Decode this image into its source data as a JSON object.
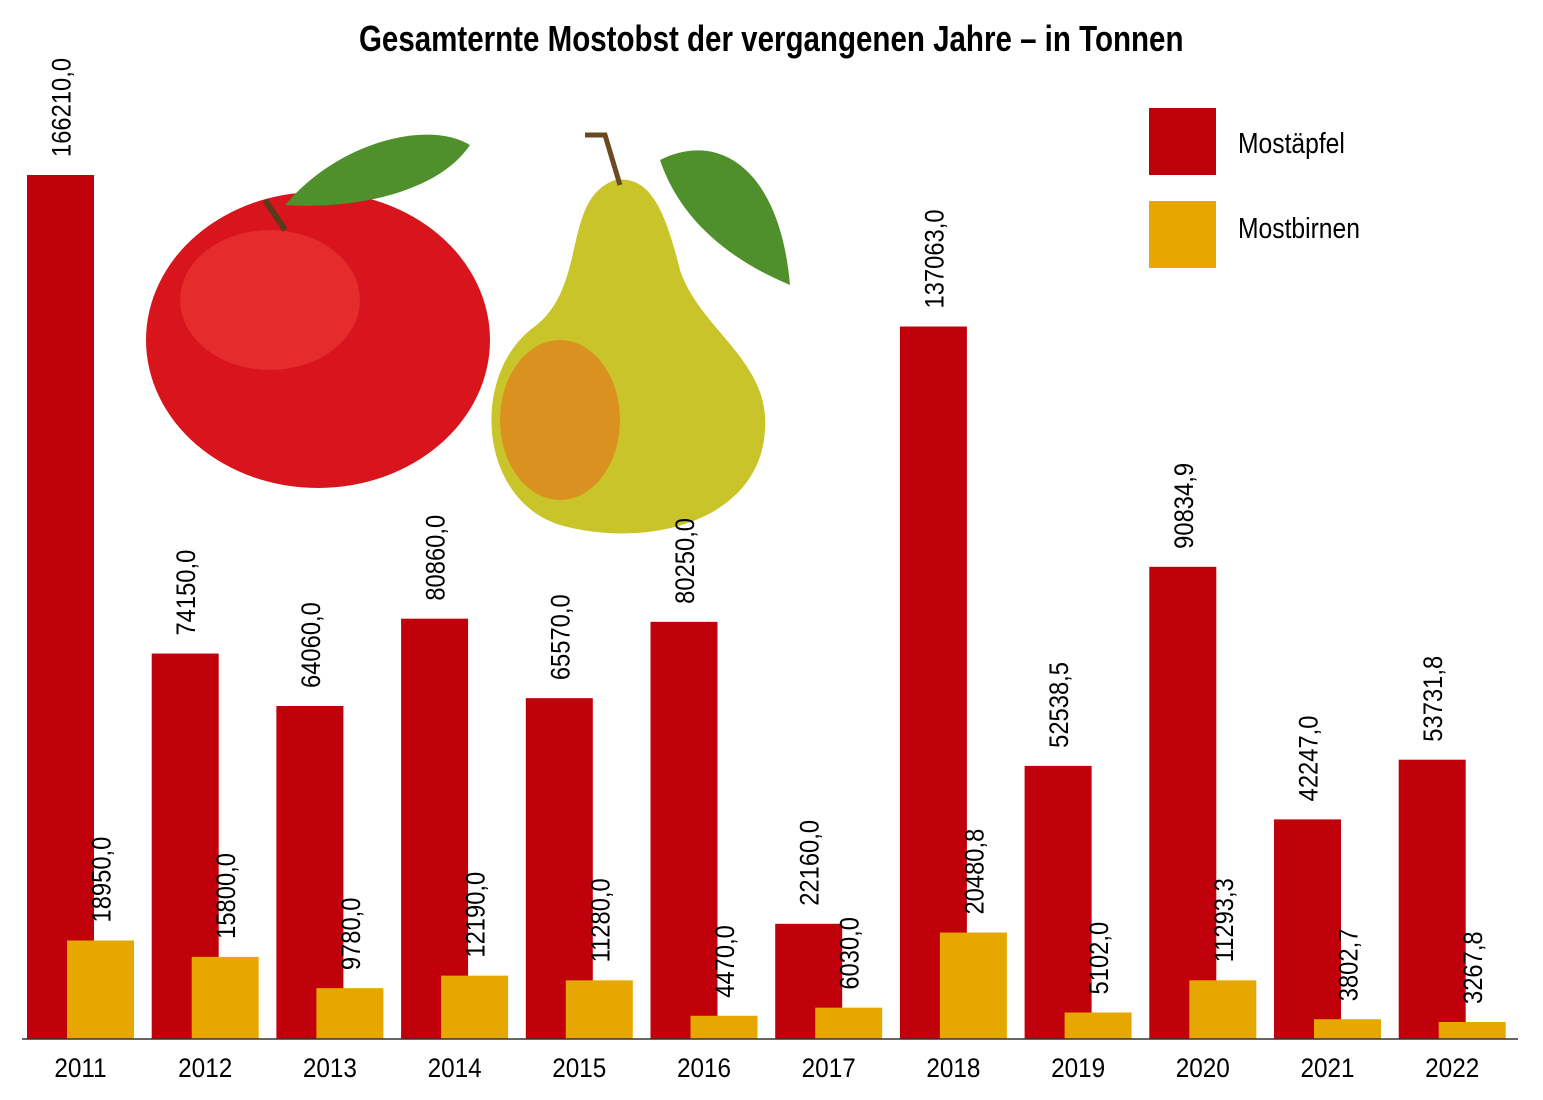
{
  "chart_data": {
    "type": "bar",
    "title": "Gesamternte Mostobst der vergangenen Jahre – in Tonnen",
    "xlabel": "",
    "ylabel": "",
    "ylim": [
      0,
      166210
    ],
    "grid": false,
    "legend_position": "top-right",
    "categories": [
      "2011",
      "2012",
      "2013",
      "2014",
      "2015",
      "2016",
      "2017",
      "2018",
      "2019",
      "2020",
      "2021",
      "2022"
    ],
    "series": [
      {
        "name": "Mostäpfel",
        "color": "#c0000b",
        "values": [
          166210.0,
          74150.0,
          64060.0,
          80860.0,
          65570.0,
          80250.0,
          22160.0,
          137063.0,
          52538.5,
          90834.9,
          42247.0,
          53731.8
        ],
        "labels": [
          "166210,0",
          "74150,0",
          "64060,0",
          "80860,0",
          "65570,0",
          "80250,0",
          "22160,0",
          "137063,0",
          "52538,5",
          "90834,9",
          "42247,0",
          "53731,8"
        ]
      },
      {
        "name": "Mostbirnen",
        "color": "#e6a800",
        "values": [
          18950.0,
          15800.0,
          9780.0,
          12190.0,
          11280.0,
          4470.0,
          6030.0,
          20480.8,
          5102.0,
          11293.3,
          3802.7,
          3267.8
        ],
        "labels": [
          "18950,0",
          "15800,0",
          "9780,0",
          "12190,0",
          "11280,0",
          "4470,0",
          "6030,0",
          "20480,8",
          "5102,0",
          "11293,3",
          "3802,7",
          "3267,8"
        ]
      }
    ]
  }
}
